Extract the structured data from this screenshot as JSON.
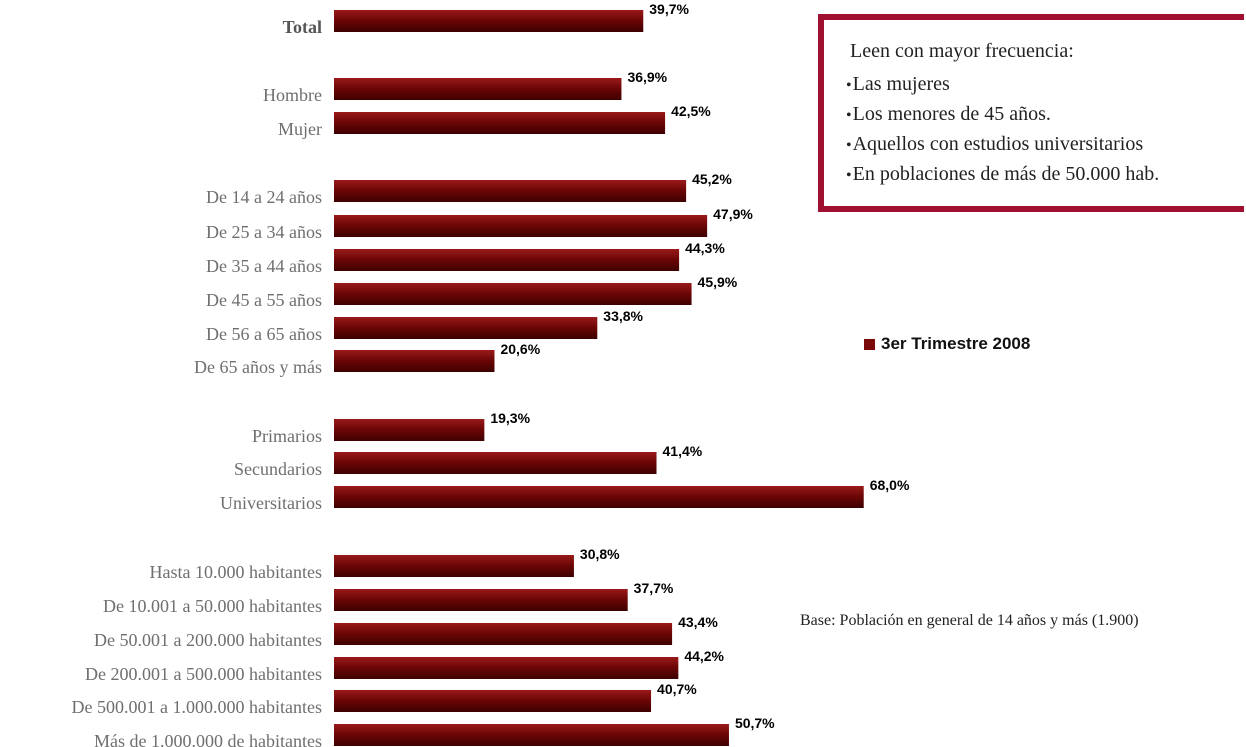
{
  "chart_data": {
    "type": "bar",
    "orientation": "horizontal",
    "categories": [
      "Total",
      "Hombre",
      "Mujer",
      "De 14 a 24 años",
      "De 25 a 34 años",
      "De 35 a 44 años",
      "De 45 a 55 años",
      "De 56 a 65 años",
      "De 65 años y más",
      "Primarios",
      "Secundarios",
      "Universitarios",
      "Hasta 10.000 habitantes",
      "De 10.001 a 50.000 habitantes",
      "De 50.001 a 200.000 habitantes",
      "De 200.001 a 500.000 habitantes",
      "De 500.001 a 1.000.000 habitantes",
      "Más de 1.000.000 de habitantes"
    ],
    "series": [
      {
        "name": "3er Trimestre 2008",
        "values": [
          39.7,
          36.9,
          42.5,
          45.2,
          47.9,
          44.3,
          45.9,
          33.8,
          20.6,
          19.3,
          41.4,
          68.0,
          30.8,
          37.7,
          43.4,
          44.2,
          40.7,
          50.7
        ],
        "labels": [
          "39,7%",
          "36,9%",
          "42,5%",
          "45,2%",
          "47,9%",
          "44,3%",
          "45,9%",
          "33,8%",
          "20,6%",
          "19,3%",
          "41,4%",
          "68,0%",
          "30,8%",
          "37,7%",
          "43,4%",
          "44,2%",
          "40,7%",
          "50,7%"
        ],
        "color": "#7a0a0a"
      }
    ],
    "xlim": [
      0,
      100
    ],
    "grid": false,
    "legend_position": "right"
  },
  "legend": {
    "label": "3er Trimestre 2008"
  },
  "note_box": {
    "title": "Leen con mayor frecuencia:",
    "items": [
      "Las mujeres",
      "Los menores de 45 años.",
      "Aquellos con estudios universitarios",
      "En poblaciones de más de 50.000 hab."
    ],
    "bullet": "•",
    "border_color": "#a01030"
  },
  "base_note": "Base: Población en general de 14 años y más (1.900)"
}
